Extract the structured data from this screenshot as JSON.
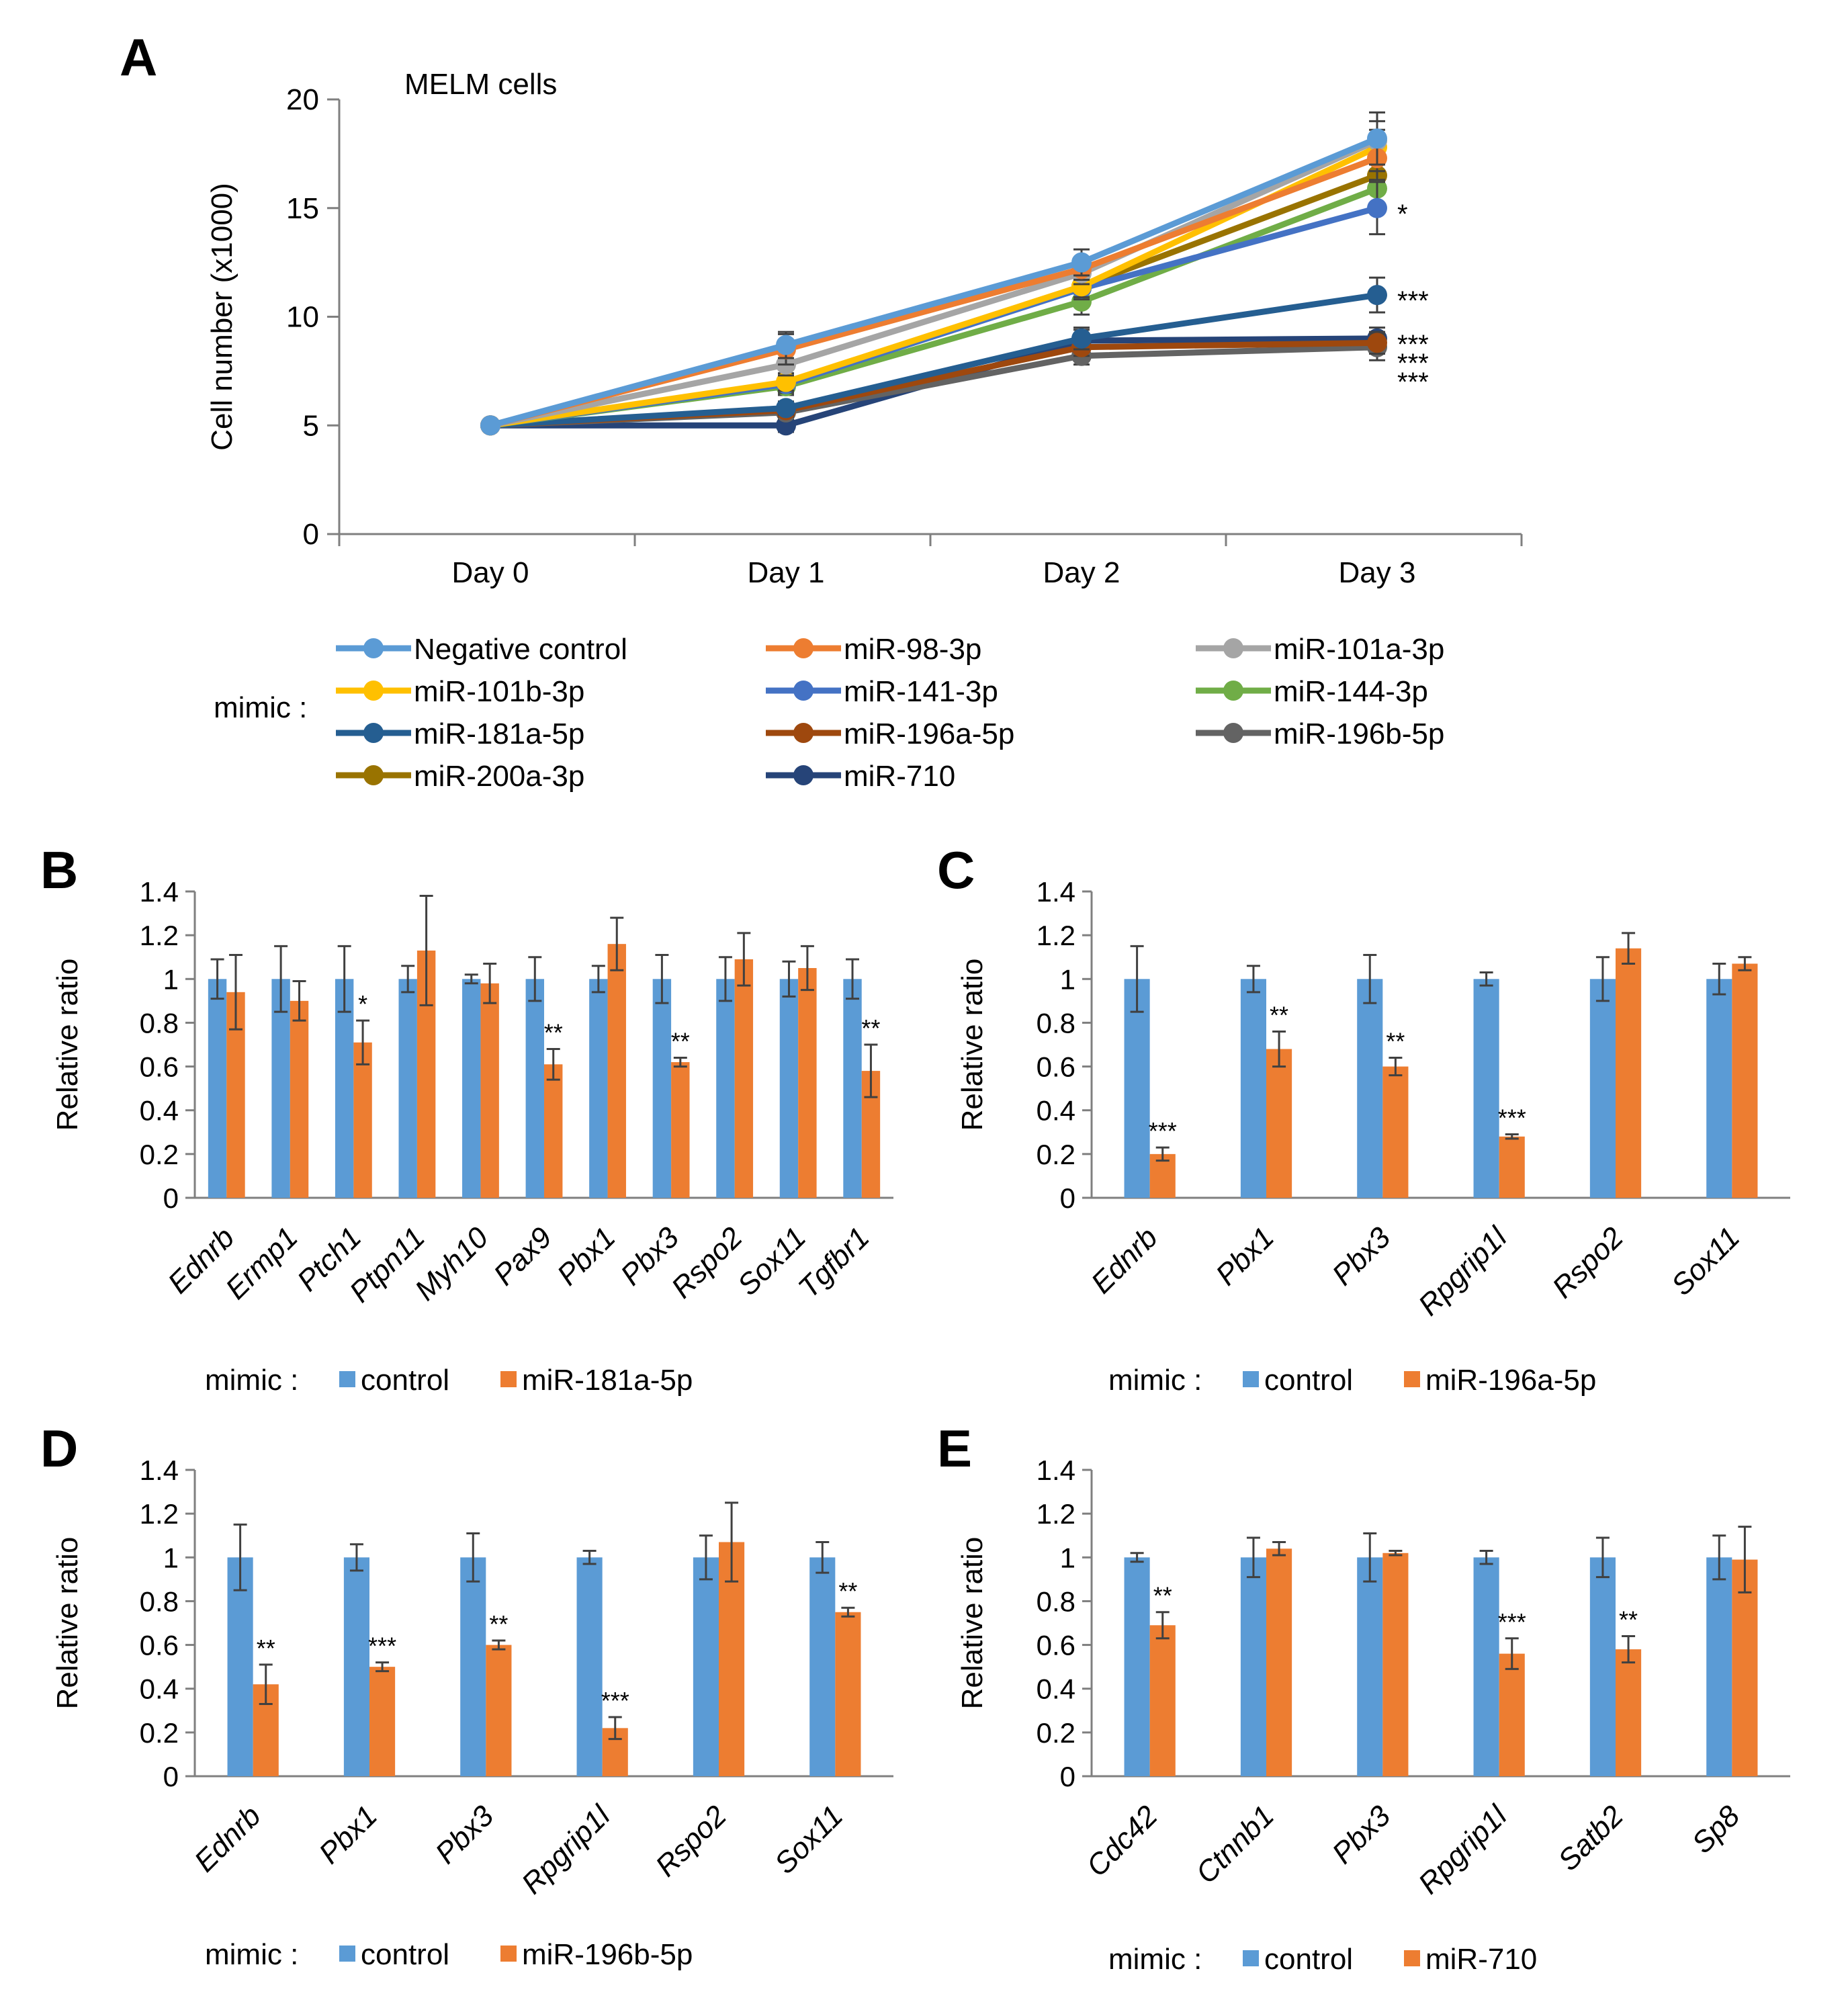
{
  "colors": {
    "control": "#5B9BD5",
    "treated": "#ED7D31",
    "axis": "#7f7f7f",
    "errorbar": "#404040"
  },
  "chart_data": [
    {
      "panel": "A",
      "type": "line",
      "title": "MELM cells",
      "ylabel": "Cell number (x1000)",
      "xlabel": "",
      "x": [
        "Day 0",
        "Day 1",
        "Day 2",
        "Day 3"
      ],
      "ylim": [
        0,
        20
      ],
      "yticks": [
        0,
        5,
        10,
        15,
        20
      ],
      "legend_label": "mimic :",
      "series": [
        {
          "name": "Negative control",
          "color": "#5B9BD5",
          "values": [
            5,
            8.7,
            12.5,
            18.2
          ],
          "errors": [
            0,
            0.6,
            0.6,
            1.2
          ],
          "sig": ""
        },
        {
          "name": "miR-98-3p",
          "color": "#ED7D31",
          "values": [
            5,
            8.5,
            12.2,
            17.3
          ],
          "errors": [
            0,
            0.7,
            0.5,
            1.0
          ],
          "sig": ""
        },
        {
          "name": "miR-101a-3p",
          "color": "#A5A5A5",
          "values": [
            5,
            7.8,
            12.0,
            18.1
          ],
          "errors": [
            0,
            0.5,
            0.5,
            0.9
          ],
          "sig": ""
        },
        {
          "name": "miR-101b-3p",
          "color": "#FFC000",
          "values": [
            5,
            7.0,
            11.4,
            17.8
          ],
          "errors": [
            0,
            0.4,
            0.5,
            0.8
          ],
          "sig": ""
        },
        {
          "name": "miR-141-3p",
          "color": "#4472C4",
          "values": [
            5,
            6.9,
            11.3,
            15.0
          ],
          "errors": [
            0,
            0.4,
            0.5,
            1.2
          ],
          "sig": "*"
        },
        {
          "name": "miR-144-3p",
          "color": "#70AD47",
          "values": [
            5,
            6.8,
            10.7,
            15.9
          ],
          "errors": [
            0,
            0.4,
            0.6,
            0.8
          ],
          "sig": ""
        },
        {
          "name": "miR-181a-5p",
          "color": "#255E91",
          "values": [
            5,
            5.8,
            9.0,
            11.0
          ],
          "errors": [
            0,
            0.3,
            0.5,
            0.8
          ],
          "sig": "***"
        },
        {
          "name": "miR-196a-5p",
          "color": "#9E480E",
          "values": [
            5,
            5.7,
            8.6,
            8.8
          ],
          "errors": [
            0,
            0.3,
            0.4,
            0.5
          ],
          "sig": "***"
        },
        {
          "name": "miR-196b-5p",
          "color": "#636363",
          "values": [
            5,
            5.6,
            8.2,
            8.6
          ],
          "errors": [
            0,
            0.3,
            0.4,
            0.6
          ],
          "sig": "***"
        },
        {
          "name": "miR-200a-3p",
          "color": "#997300",
          "values": [
            5,
            6.9,
            11.4,
            16.5
          ],
          "errors": [
            0,
            0.4,
            0.5,
            0.8
          ],
          "sig": ""
        },
        {
          "name": "miR-710",
          "color": "#264478",
          "values": [
            5,
            5.0,
            8.9,
            9.0
          ],
          "errors": [
            0,
            0.3,
            0.5,
            0.5
          ],
          "sig": "***"
        }
      ]
    },
    {
      "panel": "B",
      "type": "bar",
      "ylabel": "Relative ratio",
      "ylim": [
        0,
        1.4
      ],
      "yticks": [
        "0",
        "0.2",
        "0.4",
        "0.6",
        "0.8",
        "1",
        "1.2",
        "1.4"
      ],
      "legend_label": "mimic :",
      "categories": [
        "Ednrb",
        "Ermp1",
        "Ptch1",
        "Ptpn11",
        "Myh10",
        "Pax9",
        "Pbx1",
        "Pbx3",
        "Rspo2",
        "Sox11",
        "Tgfbr1"
      ],
      "series": [
        {
          "name": "control",
          "values": [
            1,
            1,
            1,
            1,
            1,
            1,
            1,
            1,
            1,
            1,
            1
          ],
          "errors": [
            0.09,
            0.15,
            0.15,
            0.06,
            0.02,
            0.1,
            0.06,
            0.11,
            0.1,
            0.08,
            0.09
          ]
        },
        {
          "name": "miR-181a-5p",
          "values": [
            0.94,
            0.9,
            0.71,
            1.13,
            0.98,
            0.61,
            1.16,
            0.62,
            1.09,
            1.05,
            0.58
          ],
          "errors": [
            0.17,
            0.09,
            0.1,
            0.25,
            0.09,
            0.07,
            0.12,
            0.02,
            0.12,
            0.1,
            0.12
          ]
        }
      ],
      "significance": [
        "",
        "",
        "*",
        "",
        "",
        "**",
        "",
        "**",
        "",
        "",
        "**"
      ]
    },
    {
      "panel": "C",
      "type": "bar",
      "ylabel": "Relative ratio",
      "ylim": [
        0,
        1.4
      ],
      "yticks": [
        "0",
        "0.2",
        "0.4",
        "0.6",
        "0.8",
        "1",
        "1.2",
        "1.4"
      ],
      "legend_label": "mimic :",
      "categories": [
        "Ednrb",
        "Pbx1",
        "Pbx3",
        "Rpgrip1l",
        "Rspo2",
        "Sox11"
      ],
      "series": [
        {
          "name": "control",
          "values": [
            1,
            1,
            1,
            1,
            1,
            1
          ],
          "errors": [
            0.15,
            0.06,
            0.11,
            0.03,
            0.1,
            0.07
          ]
        },
        {
          "name": "miR-196a-5p",
          "values": [
            0.2,
            0.68,
            0.6,
            0.28,
            1.14,
            1.07
          ],
          "errors": [
            0.03,
            0.08,
            0.04,
            0.01,
            0.07,
            0.03
          ]
        }
      ],
      "significance": [
        "***",
        "**",
        "**",
        "***",
        "",
        ""
      ]
    },
    {
      "panel": "D",
      "type": "bar",
      "ylabel": "Relative ratio",
      "ylim": [
        0,
        1.4
      ],
      "yticks": [
        "0",
        "0.2",
        "0.4",
        "0.6",
        "0.8",
        "1",
        "1.2",
        "1.4"
      ],
      "legend_label": "mimic :",
      "categories": [
        "Ednrb",
        "Pbx1",
        "Pbx3",
        "Rpgrip1l",
        "Rspo2",
        "Sox11"
      ],
      "series": [
        {
          "name": "control",
          "values": [
            1,
            1,
            1,
            1,
            1,
            1
          ],
          "errors": [
            0.15,
            0.06,
            0.11,
            0.03,
            0.1,
            0.07
          ]
        },
        {
          "name": "miR-196b-5p",
          "values": [
            0.42,
            0.5,
            0.6,
            0.22,
            1.07,
            0.75
          ],
          "errors": [
            0.09,
            0.02,
            0.02,
            0.05,
            0.18,
            0.02
          ]
        }
      ],
      "significance": [
        "**",
        "***",
        "**",
        "***",
        "",
        "**"
      ]
    },
    {
      "panel": "E",
      "type": "bar",
      "ylabel": "Relative ratio",
      "ylim": [
        0,
        1.4
      ],
      "yticks": [
        "0",
        "0.2",
        "0.4",
        "0.6",
        "0.8",
        "1",
        "1.2",
        "1.4"
      ],
      "legend_label": "mimic :",
      "categories": [
        "Cdc42",
        "Ctnnb1",
        "Pbx3",
        "Rpgrip1l",
        "Satb2",
        "Sp8"
      ],
      "series": [
        {
          "name": "control",
          "values": [
            1,
            1,
            1,
            1,
            1,
            1
          ],
          "errors": [
            0.02,
            0.09,
            0.11,
            0.03,
            0.09,
            0.1
          ]
        },
        {
          "name": "miR-710",
          "values": [
            0.69,
            1.04,
            1.02,
            0.56,
            0.58,
            0.99
          ],
          "errors": [
            0.06,
            0.03,
            0.01,
            0.07,
            0.06,
            0.15
          ]
        }
      ],
      "significance": [
        "**",
        "",
        "",
        "***",
        "**",
        ""
      ]
    }
  ]
}
